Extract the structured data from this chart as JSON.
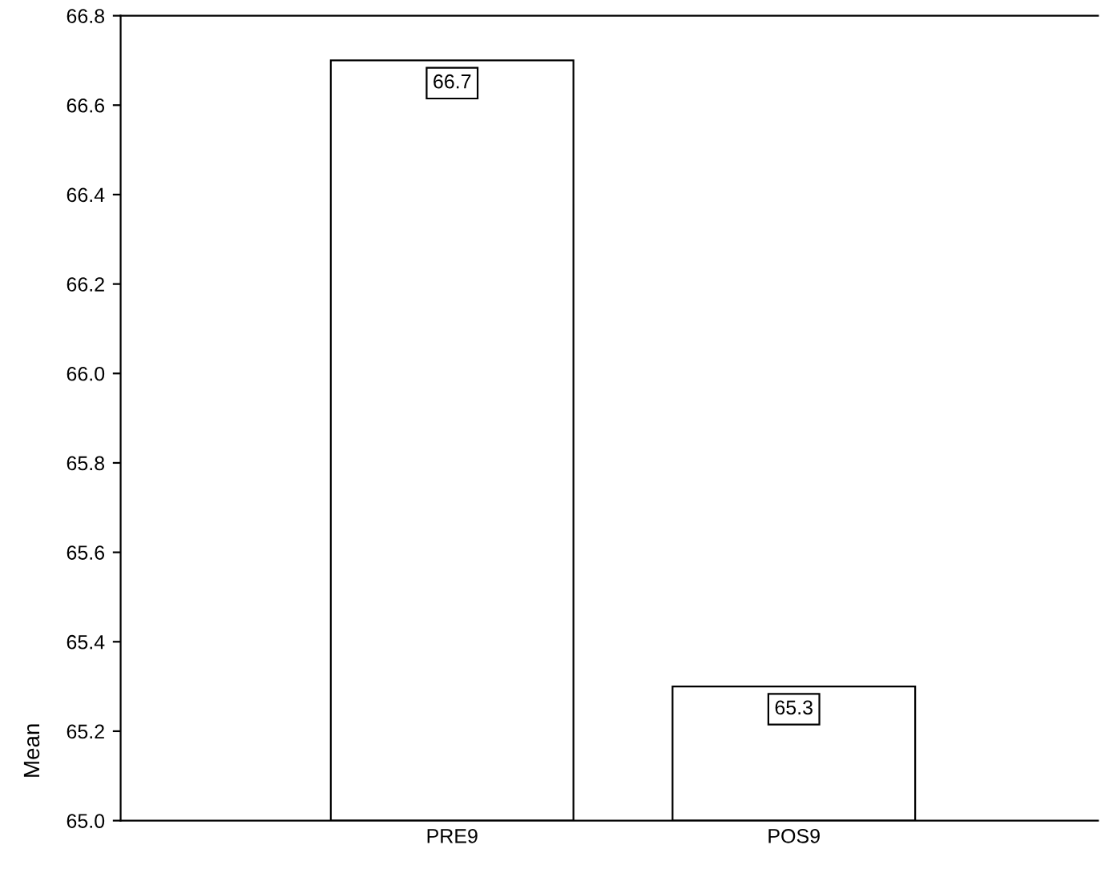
{
  "chart_data": {
    "type": "bar",
    "ylabel": "Mean",
    "categories": [
      "PRE9",
      "POS9"
    ],
    "values": [
      66.7,
      65.3
    ],
    "color": "#ffffff",
    "ylim": [
      65.0,
      66.8
    ],
    "yticks": [
      {
        "value": 65.0,
        "label": "65.0"
      },
      65.2,
      65.4,
      65.6,
      65.8,
      {
        "value": 66.0,
        "label": "66.0"
      },
      66.2,
      66.4,
      66.6,
      66.8
    ],
    "data_labels": true,
    "grid": false,
    "legend": false
  }
}
